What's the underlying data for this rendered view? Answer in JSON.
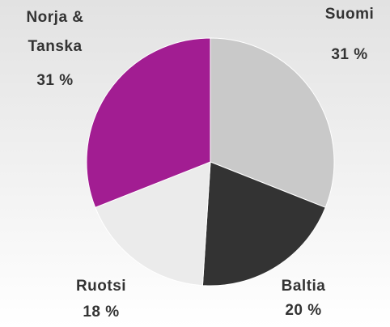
{
  "chart_data": {
    "type": "pie",
    "categories": [
      "Suomi",
      "Baltia",
      "Ruotsi",
      "Norja & Tanska"
    ],
    "values": [
      31,
      20,
      18,
      31
    ],
    "value_labels": [
      "31 %",
      "20 %",
      "18 %",
      "31 %"
    ],
    "colors": [
      "#c9c9c9",
      "#333333",
      "#ebebeb",
      "#a21d92"
    ]
  }
}
